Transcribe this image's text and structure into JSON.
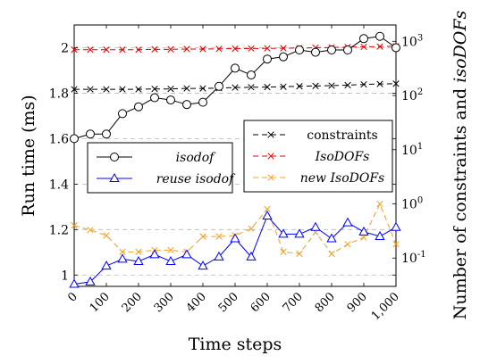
{
  "chart_data": {
    "type": "line",
    "title": "",
    "xlabel": "Time steps",
    "ylabel": "Run time (ms)",
    "y2label": "Number of constraints and isoDOFs",
    "grid": "horizontal dashed",
    "x": [
      0,
      50,
      100,
      150,
      200,
      250,
      300,
      350,
      400,
      450,
      500,
      550,
      600,
      650,
      700,
      750,
      800,
      850,
      900,
      950,
      1000
    ],
    "xticks": [
      0,
      100,
      200,
      300,
      400,
      500,
      600,
      700,
      800,
      900,
      1000
    ],
    "xtick_labels": [
      "0",
      "100",
      "200",
      "300",
      "400",
      "500",
      "600",
      "700",
      "800",
      "900",
      "1,000"
    ],
    "xlim": [
      0,
      1000
    ],
    "ylim": [
      0.95,
      2.1
    ],
    "yticks": [
      1,
      1.2,
      1.4,
      1.6,
      1.8,
      2
    ],
    "ytick_labels": [
      "1",
      "1.2",
      "1.4",
      "1.6",
      "1.8",
      "2"
    ],
    "y2_scale": "log",
    "y2lim": [
      0.03,
      2000
    ],
    "y2ticks": [
      0.1,
      1,
      10,
      100,
      1000
    ],
    "y2tick_labels": [
      "10^-1",
      "10^0",
      "10^1",
      "10^2",
      "10^3"
    ],
    "series": [
      {
        "name": "isodof",
        "axis": "left",
        "color": "#000000",
        "marker": "circle",
        "dash": "solid",
        "values": [
          1.6,
          1.62,
          1.62,
          1.71,
          1.74,
          1.78,
          1.77,
          1.75,
          1.76,
          1.83,
          1.91,
          1.88,
          1.95,
          1.96,
          1.99,
          1.98,
          1.99,
          1.99,
          2.04,
          2.05,
          2.0
        ]
      },
      {
        "name": "reuse isodof",
        "axis": "left",
        "color": "#0000ff",
        "marker": "triangle",
        "dash": "solid",
        "values": [
          0.96,
          0.97,
          1.04,
          1.07,
          1.06,
          1.09,
          1.06,
          1.09,
          1.04,
          1.08,
          1.16,
          1.08,
          1.26,
          1.18,
          1.18,
          1.21,
          1.16,
          1.23,
          1.19,
          1.17,
          1.21
        ]
      },
      {
        "name": "constraints",
        "axis": "right",
        "color": "#000000",
        "marker": "x",
        "dash": "dashed",
        "values": [
          130,
          130,
          130,
          130,
          130,
          132,
          132,
          135,
          135,
          137,
          140,
          142,
          143,
          145,
          148,
          150,
          152,
          155,
          160,
          163,
          165
        ]
      },
      {
        "name": "IsoDOFs",
        "axis": "right",
        "color": "#e00000",
        "marker": "x",
        "dash": "dashed",
        "values": [
          700,
          700,
          700,
          700,
          700,
          710,
          710,
          720,
          720,
          725,
          730,
          735,
          740,
          745,
          750,
          760,
          770,
          780,
          790,
          800,
          810
        ]
      },
      {
        "name": "new IsoDOFs",
        "axis": "right",
        "color": "#f0a020",
        "marker": "x",
        "dash": "dashed",
        "values": [
          0.4,
          0.33,
          0.26,
          0.13,
          0.13,
          0.14,
          0.14,
          0.13,
          0.25,
          0.25,
          0.26,
          0.35,
          0.8,
          0.13,
          0.12,
          0.3,
          0.12,
          0.18,
          0.24,
          1.0,
          0.18
        ]
      }
    ]
  }
}
